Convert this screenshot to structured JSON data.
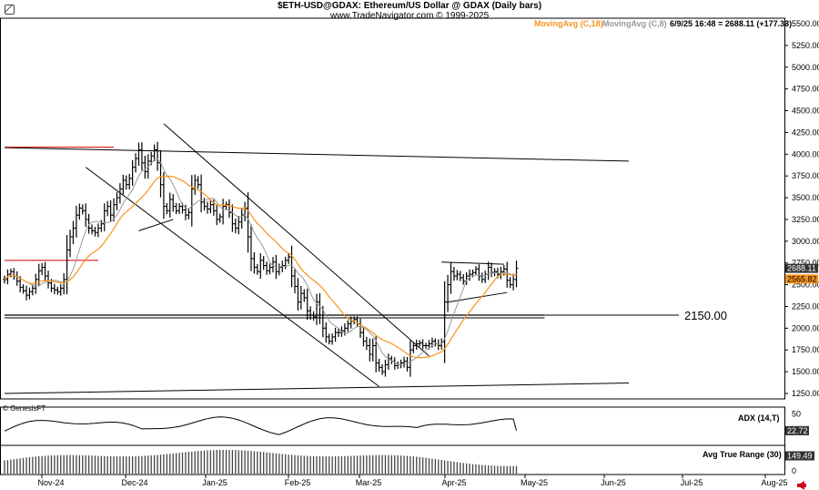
{
  "header": {
    "title": "$ETH-USD@GDAX:  Ethereum/US Dollar @ GDAX  (Daily bars)",
    "subtitle": "www.TradeNavigator.com © 1999-2025"
  },
  "indicators": {
    "ma18_label": "MovingAvg (C,18)",
    "ma8_label": "MovingAvg (C,8)",
    "last_bar": "6/9/25 16:48 = 2688.11 (+177.33)",
    "ma18_color": "#f7931e",
    "ma8_color": "#999999"
  },
  "copyright": "© GenesisFT",
  "adx_label": "ADX (14,T)",
  "atr_label": "Avg True Range (30)",
  "support_label": "2150.00",
  "icons": {
    "corner": "pill-icon",
    "nav": "arrow-left-icon"
  },
  "chart_data": {
    "type": "ohlc",
    "price_axis": {
      "ticks": [
        5500,
        5250,
        5000,
        4750,
        4500,
        4250,
        4000,
        3750,
        3500,
        3250,
        3000,
        2750,
        2500,
        2250,
        2000,
        1750,
        1500,
        1250
      ],
      "tick_labels": [
        "5500.00",
        "5250.00",
        "5000.00",
        "4750.00",
        "4500.00",
        "4250.00",
        "4000.00",
        "3750.00",
        "3500.00",
        "3250.00",
        "3000.00",
        "2750.00",
        "2500.00",
        "2250.00",
        "2000.00",
        "1750.00",
        "1500.00",
        "1250.00"
      ],
      "ylim": [
        1120,
        5600
      ]
    },
    "x_axis": {
      "labels": [
        "Nov-24",
        "Dec-24",
        "Jan-25",
        "Feb-25",
        "Mar-25",
        "Apr-25",
        "May-25",
        "Jun-25",
        "Jul-25",
        "Aug-25"
      ]
    },
    "price_markers": [
      {
        "label": "2688.11",
        "value": 2688.11,
        "style": "dark"
      },
      {
        "label": "2565.82",
        "value": 2565.82,
        "style": "orange"
      }
    ],
    "adx": {
      "ticks": [
        50
      ],
      "tick_labels": [
        "50"
      ],
      "last_label": "22.72",
      "last": 22.72,
      "range": [
        0,
        60
      ]
    },
    "atr": {
      "ticks": [
        0
      ],
      "tick_labels": [
        "0"
      ],
      "last_label": "149.49",
      "last": 149.49,
      "range": [
        0,
        230
      ]
    },
    "closes": [
      2560,
      2620,
      2650,
      2600,
      2540,
      2470,
      2430,
      2380,
      2420,
      2460,
      2560,
      2660,
      2700,
      2600,
      2520,
      2460,
      2440,
      2420,
      2460,
      2560,
      2900,
      3050,
      3150,
      3300,
      3380,
      3350,
      3250,
      3150,
      3120,
      3100,
      3150,
      3200,
      3350,
      3400,
      3300,
      3420,
      3500,
      3600,
      3700,
      3650,
      3720,
      3850,
      3950,
      4050,
      3900,
      3800,
      3920,
      3980,
      4050,
      3900,
      3650,
      3400,
      3350,
      3480,
      3400,
      3350,
      3400,
      3360,
      3300,
      3330,
      3600,
      3700,
      3650,
      3450,
      3400,
      3370,
      3420,
      3350,
      3250,
      3280,
      3400,
      3420,
      3330,
      3200,
      3150,
      3220,
      3300,
      3380,
      3050,
      2800,
      2700,
      2650,
      2780,
      2720,
      2660,
      2700,
      2760,
      2650,
      2700,
      2720,
      2780,
      2820,
      2600,
      2480,
      2300,
      2400,
      2350,
      2200,
      2150,
      2130,
      2300,
      2150,
      2000,
      1900,
      1850,
      1900,
      1950,
      1950,
      1970,
      2000,
      2050,
      2080,
      2100,
      2050,
      1950,
      1850,
      1800,
      1700,
      1800,
      1600,
      1550,
      1500,
      1580,
      1650,
      1620,
      1570,
      1580,
      1600,
      1620,
      1550,
      1750,
      1800,
      1820,
      1830,
      1800,
      1800,
      1820,
      1850,
      1820,
      1800,
      1840,
      2300,
      2500,
      2650,
      2600,
      2620,
      2580,
      2540,
      2600,
      2620,
      2640,
      2680,
      2600,
      2560,
      2620,
      2700,
      2640,
      2650,
      2620,
      2650,
      2680,
      2550,
      2500,
      2560,
      2688
    ],
    "support_level": 2150,
    "lines": [
      {
        "name": "upper-resistance-line",
        "from": [
          "d0",
          4075
        ],
        "to": [
          "d200",
          3920
        ],
        "color": "#000000"
      },
      {
        "name": "red-top-line",
        "from": [
          "d0",
          4080
        ],
        "to": [
          "d35",
          4080
        ],
        "color": "#cc0000"
      },
      {
        "name": "red-mid-line",
        "from": [
          "d0",
          2780
        ],
        "to": [
          "d30",
          2780
        ],
        "color": "#cc0000"
      },
      {
        "name": "support-line",
        "from": [
          "d0",
          2150
        ],
        "to": [
          "d173",
          2150
        ],
        "color": "#000000"
      },
      {
        "name": "channel-upper-line",
        "from": [
          "d51",
          4350
        ],
        "to": [
          "d136",
          1680
        ],
        "color": "#000000"
      },
      {
        "name": "channel-lower-line",
        "from": [
          "d26",
          3850
        ],
        "to": [
          "d120",
          1330
        ],
        "color": "#000000"
      },
      {
        "name": "long-rising-line",
        "from": [
          "d0",
          1250
        ],
        "to": [
          "d200",
          1370
        ],
        "color": "#000000"
      },
      {
        "name": "short-line",
        "from": [
          "d43",
          3120
        ],
        "to": [
          "d54",
          3250
        ],
        "color": "#000000"
      },
      {
        "name": "triangle-top-line",
        "from": [
          "d140",
          2760
        ],
        "to": [
          "d160",
          2735
        ],
        "color": "#000000"
      },
      {
        "name": "triangle-bottom-line",
        "from": [
          "d142",
          2300
        ],
        "to": [
          "d161",
          2410
        ],
        "color": "#000000"
      }
    ]
  }
}
